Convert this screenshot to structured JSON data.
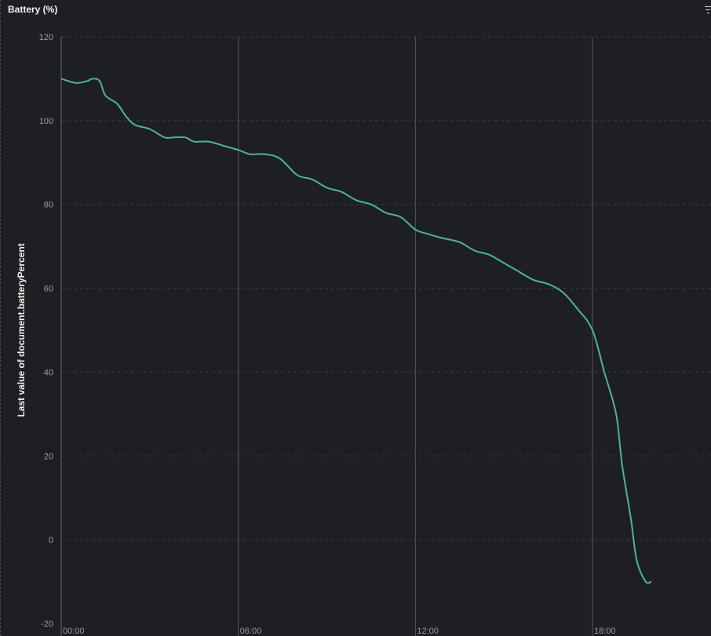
{
  "panel": {
    "title": "Battery (%)",
    "menu_icon": "filter-menu-icon"
  },
  "chart_data": {
    "type": "line",
    "title": "Battery (%)",
    "ylabel": "Last value of document.batteryPercent",
    "xlabel": "",
    "ylim": [
      -20,
      120
    ],
    "yticks": [
      120,
      100,
      80,
      60,
      40,
      20,
      0,
      -20
    ],
    "xticks": [
      {
        "hour": 0,
        "label": "00:00"
      },
      {
        "hour": 6,
        "label": "06:00"
      },
      {
        "hour": 12,
        "label": "12:00"
      },
      {
        "hour": 18,
        "label": "18:00"
      }
    ],
    "xlim_hours": [
      0,
      21.8
    ],
    "line_color": "#4db592",
    "series": [
      {
        "x_hours": [
          0,
          0.5,
          0.9,
          1.05,
          1.3,
          1.5,
          1.9,
          2.2,
          2.5,
          3.0,
          3.5,
          3.8,
          4.2,
          4.5,
          5.0,
          5.5,
          6.0,
          6.4,
          6.9,
          7.4,
          8.0,
          8.5,
          9.0,
          9.5,
          10.0,
          10.5,
          11.0,
          11.5,
          12.0,
          12.4,
          12.9,
          13.5,
          14.0,
          14.5,
          15.0,
          15.5,
          16.0,
          16.5,
          17.0,
          17.5,
          18.0,
          18.4,
          18.8,
          19.0,
          19.3,
          19.5,
          19.8,
          20.0
        ],
        "values": [
          110,
          109,
          109.5,
          110,
          109.5,
          106,
          104,
          101,
          99,
          98,
          96,
          96,
          96,
          95,
          95,
          94,
          93,
          92,
          92,
          91,
          87,
          86,
          84,
          83,
          81,
          80,
          78,
          77,
          74,
          73,
          72,
          71,
          69,
          68,
          66,
          64,
          62,
          61,
          59,
          55,
          50,
          40,
          30,
          18,
          5,
          -5,
          -10,
          -10
        ]
      }
    ]
  }
}
